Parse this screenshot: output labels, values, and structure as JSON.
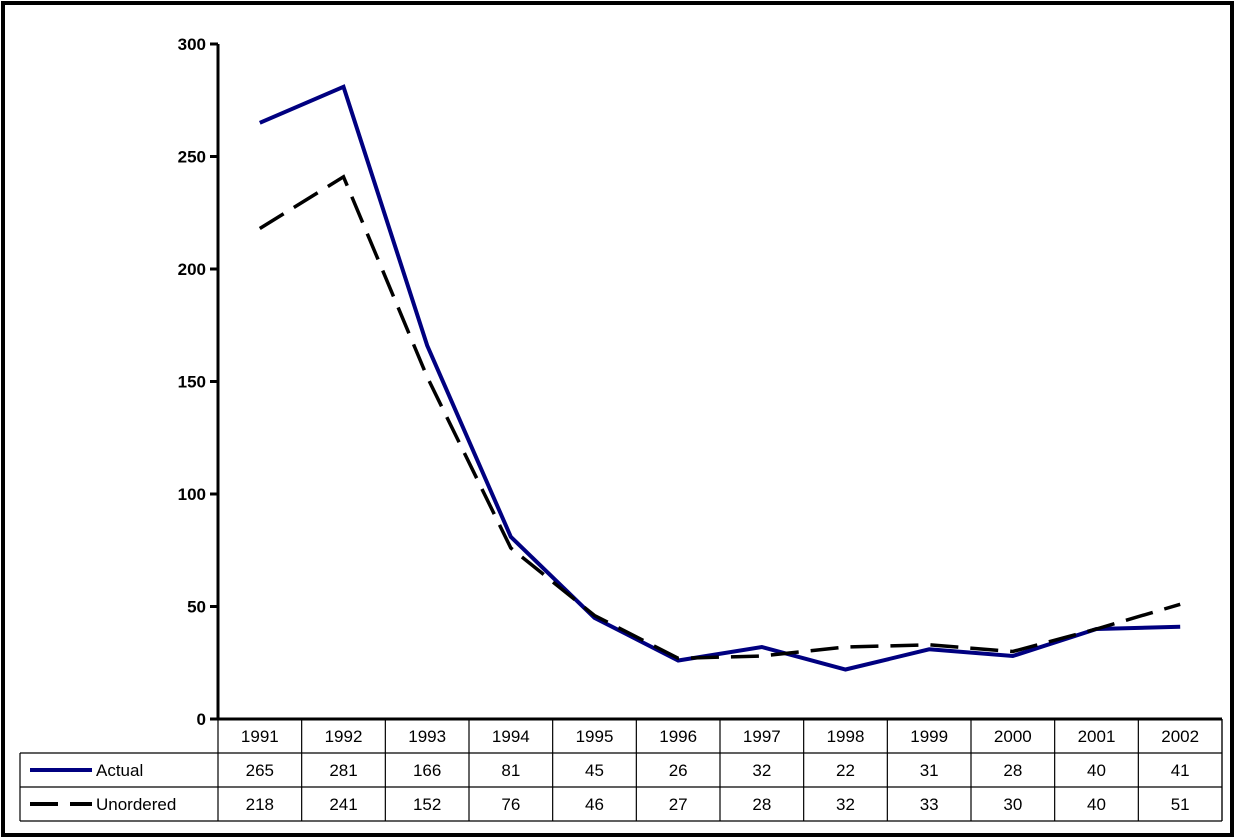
{
  "chart_data": {
    "type": "line",
    "title": "",
    "xlabel": "",
    "ylabel": "",
    "ylim": [
      0,
      300
    ],
    "yticks": [
      0,
      50,
      100,
      150,
      200,
      250,
      300
    ],
    "categories": [
      "1991",
      "1992",
      "1993",
      "1994",
      "1995",
      "1996",
      "1997",
      "1998",
      "1999",
      "2000",
      "2001",
      "2002"
    ],
    "series": [
      {
        "name": "Actual",
        "values": [
          265,
          281,
          166,
          81,
          45,
          26,
          32,
          22,
          31,
          28,
          40,
          41
        ],
        "color": "#000080",
        "style": "solid"
      },
      {
        "name": "Unordered",
        "values": [
          218,
          241,
          152,
          76,
          46,
          27,
          28,
          32,
          33,
          30,
          40,
          51
        ],
        "color": "#000000",
        "style": "dashed"
      }
    ],
    "grid": false,
    "legend": "data-table"
  }
}
